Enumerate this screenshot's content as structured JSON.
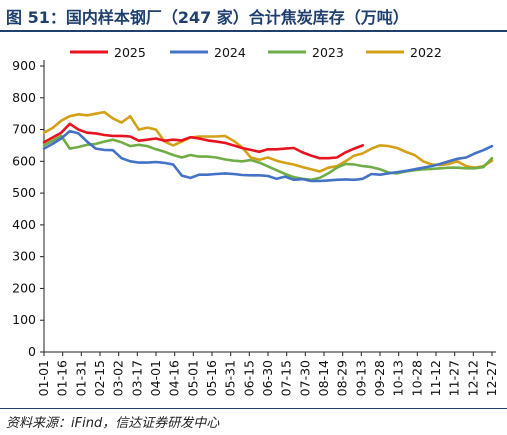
{
  "title": "图 51：国内样本钢厂（247 家）合计焦炭库存（万吨）",
  "source": "资料来源：iFind，信达证券研发中心",
  "chart_data": {
    "type": "line",
    "title": "",
    "xlabel": "",
    "ylabel": "",
    "ylim": [
      0,
      900
    ],
    "yticks": [
      0,
      100,
      200,
      300,
      400,
      500,
      600,
      700,
      800,
      900
    ],
    "grid": false,
    "legend": "top",
    "categories": [
      "01-01",
      "01-08",
      "01-16",
      "01-24",
      "01-31",
      "02-07",
      "02-14",
      "02-21",
      "02-28",
      "03-06",
      "03-13",
      "03-20",
      "03-27",
      "04-03",
      "04-10",
      "04-17",
      "04-24",
      "05-01",
      "05-08",
      "05-15",
      "05-22",
      "05-29",
      "06-05",
      "06-12",
      "06-19",
      "06-26",
      "07-03",
      "07-10",
      "07-17",
      "07-24",
      "07-31",
      "08-07",
      "08-14",
      "08-21",
      "08-28",
      "09-04",
      "09-11",
      "09-18",
      "09-25",
      "10-02",
      "10-09",
      "10-16",
      "10-23",
      "10-30",
      "11-06",
      "11-13",
      "11-20",
      "11-27",
      "12-04",
      "12-11",
      "12-18",
      "12-25",
      "12-31"
    ],
    "tick_labels": [
      "01-01",
      "01-16",
      "01-31",
      "02-15",
      "03-02",
      "03-17",
      "04-01",
      "04-16",
      "05-01",
      "05-16",
      "05-31",
      "06-15",
      "06-30",
      "07-15",
      "07-30",
      "08-14",
      "08-29",
      "09-13",
      "09-28",
      "10-13",
      "10-28",
      "11-12",
      "11-27",
      "12-12",
      "12-27"
    ],
    "series": [
      {
        "name": "2025",
        "color": "#e8131f",
        "values": [
          660,
          675,
          690,
          718,
          700,
          690,
          688,
          683,
          680,
          680,
          678,
          665,
          668,
          672,
          665,
          668,
          666,
          676,
          672,
          666,
          662,
          658,
          650,
          642,
          636,
          630,
          638,
          638,
          640,
          642,
          628,
          618,
          610,
          610,
          612,
          628,
          640,
          650,
          null,
          null,
          null,
          null,
          null,
          null,
          null,
          null,
          null,
          null,
          null,
          null,
          null,
          null,
          null
        ]
      },
      {
        "name": "2024",
        "color": "#4472c4",
        "values": [
          640,
          655,
          672,
          695,
          688,
          662,
          640,
          636,
          635,
          610,
          600,
          596,
          596,
          598,
          595,
          590,
          555,
          548,
          558,
          558,
          560,
          562,
          560,
          557,
          556,
          556,
          554,
          545,
          552,
          542,
          544,
          538,
          538,
          540,
          542,
          543,
          542,
          545,
          560,
          558,
          562,
          566,
          570,
          575,
          580,
          585,
          592,
          600,
          608,
          612,
          625,
          635,
          648
        ]
      },
      {
        "name": "2023",
        "color": "#70ad47",
        "values": [
          650,
          665,
          680,
          640,
          645,
          652,
          655,
          662,
          668,
          660,
          648,
          652,
          648,
          638,
          630,
          620,
          612,
          620,
          615,
          615,
          612,
          606,
          602,
          600,
          604,
          596,
          584,
          572,
          560,
          550,
          545,
          542,
          548,
          562,
          580,
          592,
          590,
          585,
          582,
          575,
          565,
          562,
          568,
          572,
          575,
          576,
          578,
          580,
          580,
          578,
          578,
          582,
          610
        ]
      },
      {
        "name": "2022",
        "color": "#d4a017",
        "values": [
          690,
          705,
          728,
          742,
          748,
          745,
          750,
          755,
          735,
          722,
          742,
          700,
          706,
          700,
          662,
          650,
          662,
          675,
          678,
          678,
          678,
          680,
          665,
          644,
          612,
          605,
          612,
          602,
          595,
          590,
          582,
          575,
          568,
          580,
          585,
          600,
          618,
          625,
          640,
          650,
          648,
          642,
          630,
          620,
          600,
          590,
          588,
          592,
          600,
          585,
          580,
          585,
          602
        ]
      }
    ]
  }
}
